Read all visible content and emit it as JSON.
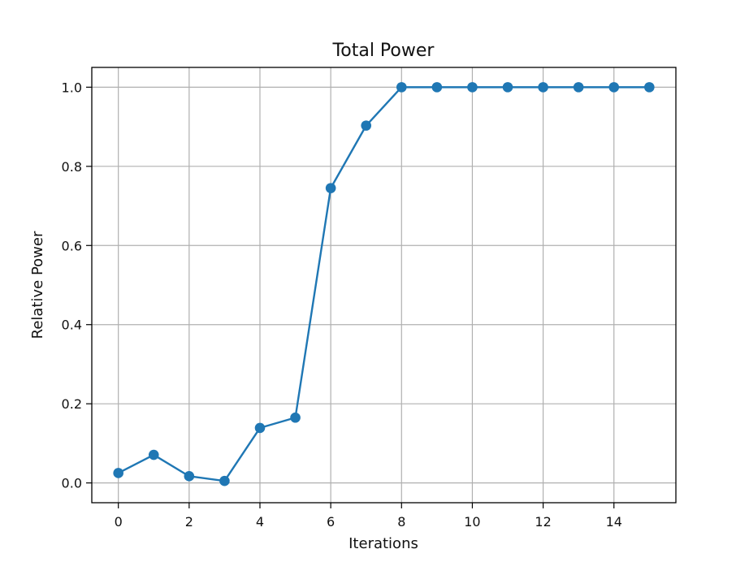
{
  "chart_data": {
    "type": "line",
    "title": "Total Power",
    "xlabel": "Iterations",
    "ylabel": "Relative Power",
    "xlim": [
      -0.75,
      15.75
    ],
    "ylim": [
      -0.05,
      1.05
    ],
    "x_ticks": [
      0,
      2,
      4,
      6,
      8,
      10,
      12,
      14
    ],
    "x_tick_labels": [
      "0",
      "2",
      "4",
      "6",
      "8",
      "10",
      "12",
      "14"
    ],
    "y_ticks": [
      0.0,
      0.2,
      0.4,
      0.6,
      0.8,
      1.0
    ],
    "y_tick_labels": [
      "0.0",
      "0.2",
      "0.4",
      "0.6",
      "0.8",
      "1.0"
    ],
    "grid": true,
    "series": [
      {
        "color": "#1f77b4",
        "marker": "circle",
        "x": [
          0,
          1,
          2,
          3,
          4,
          5,
          6,
          7,
          8,
          9,
          10,
          11,
          12,
          13,
          14,
          15
        ],
        "y": [
          0.025,
          0.071,
          0.017,
          0.005,
          0.139,
          0.165,
          0.745,
          0.903,
          1.0,
          1.0,
          1.0,
          1.0,
          1.0,
          1.0,
          1.0,
          1.0
        ]
      }
    ]
  }
}
